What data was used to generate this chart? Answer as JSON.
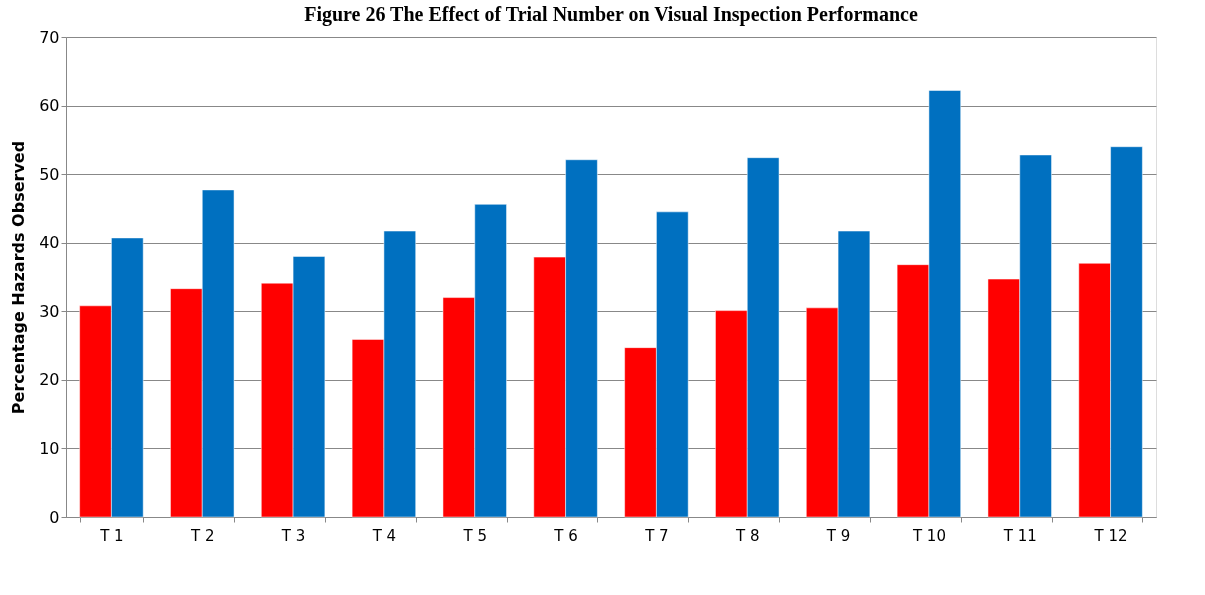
{
  "chart_data": {
    "type": "bar",
    "title": "Figure 26 The Effect of Trial Number on Visual Inspection Performance",
    "ylabel": "Percentage Hazards Observed",
    "categories": [
      "T 1",
      "T 2",
      "T 3",
      "T 4",
      "T 5",
      "T 6",
      "T 7",
      "T 8",
      "T 9",
      "T 10",
      "T 11",
      "T 12"
    ],
    "series": [
      {
        "color": "#ff0000",
        "values": [
          30.8,
          33.3,
          34.1,
          25.9,
          32.0,
          37.9,
          24.7,
          30.1,
          30.5,
          36.8,
          34.7,
          37.0
        ]
      },
      {
        "color": "#0070c0",
        "values": [
          40.7,
          47.7,
          38.0,
          41.7,
          45.6,
          52.1,
          44.5,
          52.4,
          41.7,
          62.2,
          52.8,
          54.0
        ]
      }
    ],
    "ylim": [
      0,
      70
    ],
    "yticks": [
      0,
      10,
      20,
      30,
      40,
      50,
      60,
      70
    ],
    "grid": "y",
    "legend": false
  }
}
